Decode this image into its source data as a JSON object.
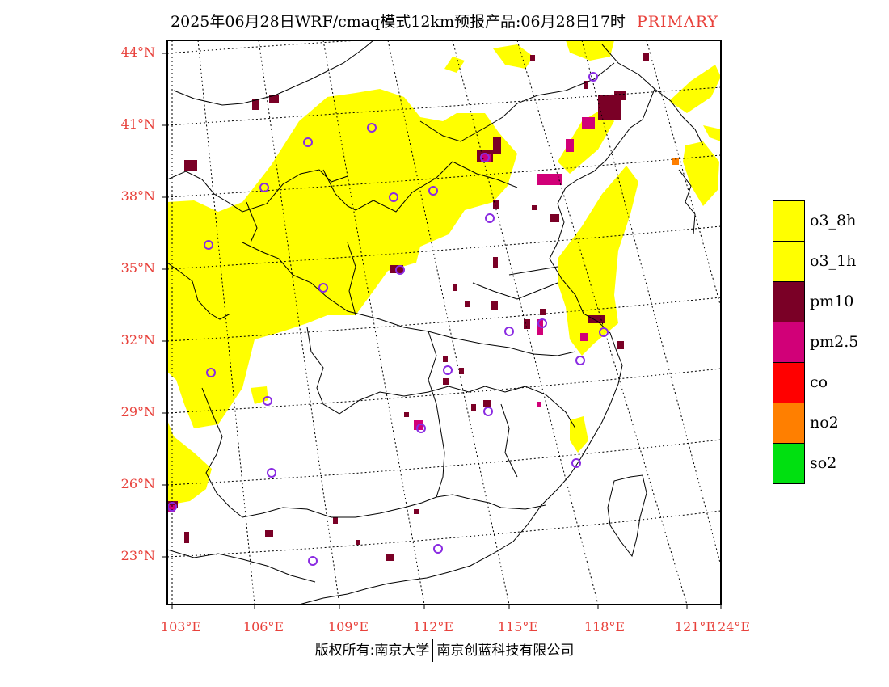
{
  "title": {
    "main": "2025年06月28日WRF/cmaq模式12km预报产品:06月28日17时",
    "tag": "PRIMARY"
  },
  "lat_labels": [
    "44°N",
    "41°N",
    "38°N",
    "35°N",
    "32°N",
    "29°N",
    "26°N",
    "23°N"
  ],
  "lon_labels": [
    "103°E",
    "106°E",
    "109°E",
    "112°E",
    "115°E",
    "118°E",
    "121°E",
    "124°E"
  ],
  "legend": [
    {
      "label": "o3_8h",
      "color": "#ffff00"
    },
    {
      "label": "o3_1h",
      "color": "#ffff00"
    },
    {
      "label": "pm10",
      "color": "#7a0026"
    },
    {
      "label": "pm2.5",
      "color": "#d10078"
    },
    {
      "label": "co",
      "color": "#ff0000"
    },
    {
      "label": "no2",
      "color": "#ff7f00"
    },
    {
      "label": "so2",
      "color": "#00e010"
    }
  ],
  "footer": {
    "left": "版权所有:南京大学",
    "right": "南京创蓝科技有限公司"
  },
  "map_colors": {
    "o3": "#ffff00",
    "pm10": "#7a0026",
    "pm25": "#d10078",
    "no2": "#ff7f00",
    "station_ring": "#8a2be2",
    "axis_text": "#e8413b"
  }
}
